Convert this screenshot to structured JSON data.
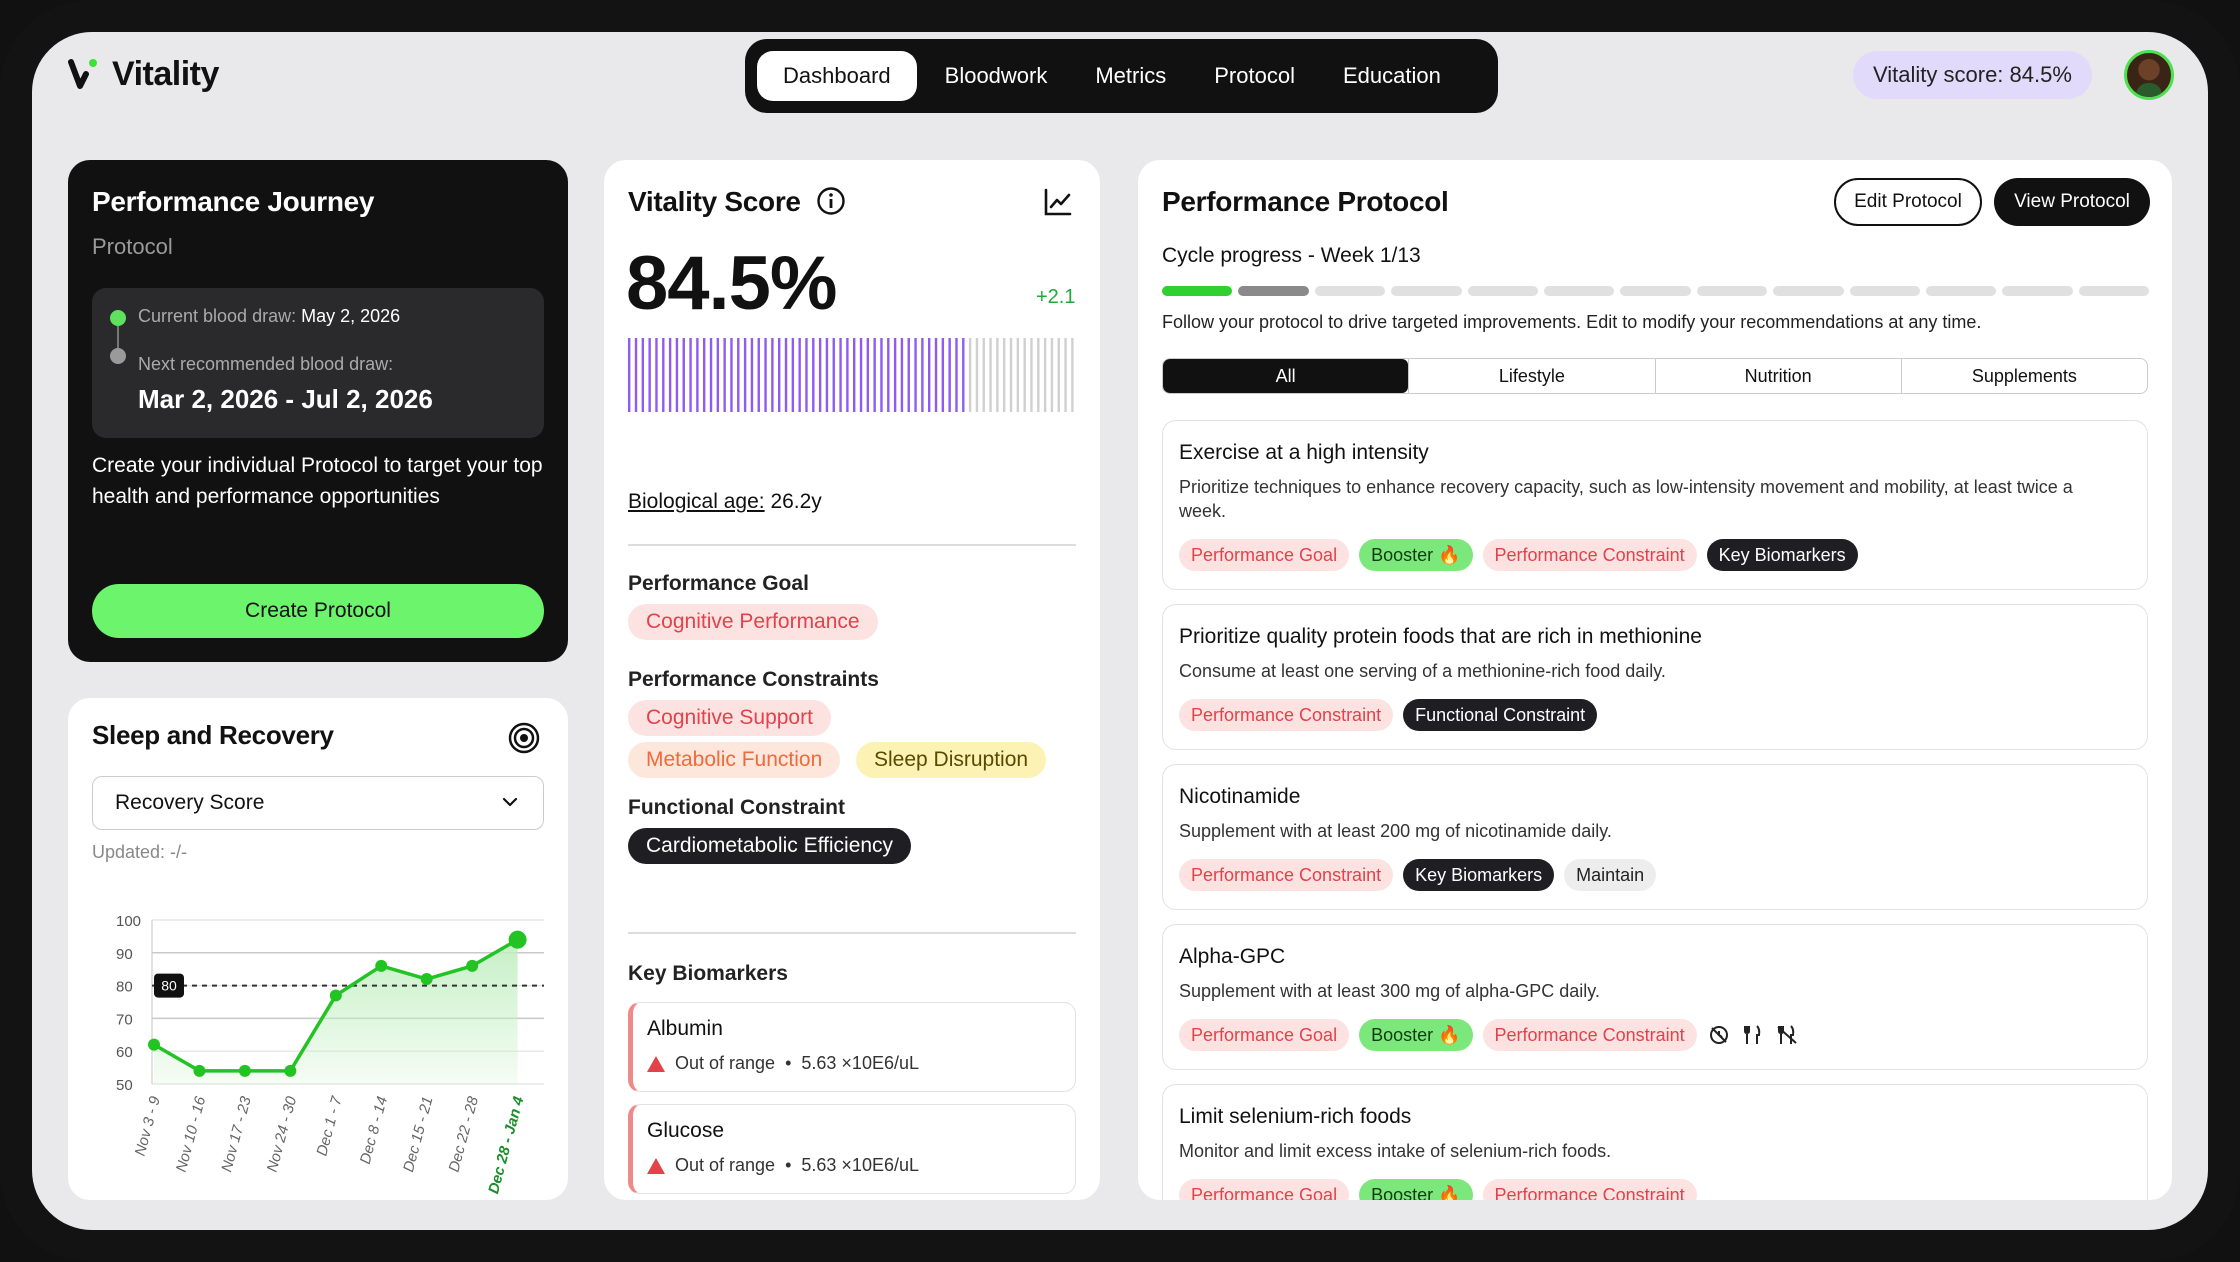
{
  "app": {
    "name": "Vitality"
  },
  "nav": {
    "items": [
      "Dashboard",
      "Bloodwork",
      "Metrics",
      "Protocol",
      "Education"
    ],
    "active": 0
  },
  "header": {
    "score_pill": "Vitality score: 84.5%"
  },
  "journey": {
    "title": "Performance Journey",
    "subtitle": "Protocol",
    "current_label": "Current blood draw:",
    "current_date": "May 2, 2026",
    "next_label": "Next recommended blood draw:",
    "next_range": "Mar 2, 2026 - Jul 2, 2026",
    "description": "Create your individual Protocol to target your top health and performance opportunities",
    "create_button": "Create Protocol"
  },
  "sleep": {
    "title": "Sleep and Recovery",
    "select_value": "Recovery Score",
    "updated": "Updated: -/-"
  },
  "chart_data": {
    "type": "line",
    "x": [
      "Nov 3 - 9",
      "Nov 10 - 16",
      "Nov 17 - 23",
      "Nov 24 - 30",
      "Dec 1 - 7",
      "Dec 8 - 14",
      "Dec 15 - 21",
      "Dec 22 - 28",
      "Dec 28 - Jan 4"
    ],
    "series": [
      {
        "values": [
          62,
          54,
          54,
          54,
          77,
          86,
          82,
          86,
          94
        ]
      }
    ],
    "ylim": [
      50,
      100
    ],
    "yticks": [
      100,
      90,
      80,
      70,
      60,
      50
    ],
    "reference_line": {
      "value": 80,
      "label": "80"
    },
    "highlight_last": true,
    "colors": {
      "line": "#22c322",
      "fill": "#bfeebf",
      "highlight_label": "#1a8f2a"
    }
  },
  "vitality": {
    "title": "Vitality Score",
    "score": "84.5%",
    "delta": "+2.1",
    "score_fraction": 0.76,
    "bio_label": "Biological age:",
    "bio_value": "26.2y",
    "goal_label": "Performance Goal",
    "goal_chip": "Cognitive Performance",
    "constraints_label": "Performance Constraints",
    "constraints": [
      "Cognitive Support",
      "Metabolic Function",
      "Sleep Disruption"
    ],
    "functional_label": "Functional Constraint",
    "functional_chip": "Cardiometabolic Efficiency",
    "biomarkers_label": "Key Biomarkers",
    "biomarkers": [
      {
        "name": "Albumin",
        "status": "Out of range",
        "value": "5.63 ×10E6/uL"
      },
      {
        "name": "Glucose",
        "status": "Out of range",
        "value": "5.63 ×10E6/uL"
      }
    ],
    "colors": {
      "bar_active": "#8e5cf0",
      "bar_inactive": "#d0d0d0"
    }
  },
  "protocol": {
    "title": "Performance Protocol",
    "edit_button": "Edit Protocol",
    "view_button": "View Protocol",
    "cycle_label": "Cycle progress - Week 1/13",
    "cycle_current": 1,
    "cycle_total": 13,
    "follow_text": "Follow your protocol to drive targeted improvements. Edit to modify your recommendations at any time.",
    "tabs": [
      "All",
      "Lifestyle",
      "Nutrition",
      "Supplements"
    ],
    "active_tab": 0,
    "recommendations": [
      {
        "title": "Exercise at a high intensity",
        "desc": "Prioritize techniques to enhance recovery capacity, such as low-intensity movement and mobility, at least twice a week.",
        "tags": [
          {
            "label": "Performance Goal",
            "style": "red"
          },
          {
            "label": "Booster 🔥",
            "style": "green"
          },
          {
            "label": "Performance Constraint",
            "style": "red"
          },
          {
            "label": "Key Biomarkers",
            "style": "dark"
          }
        ]
      },
      {
        "title": "Prioritize quality protein foods that are rich in methionine",
        "desc": "Consume at least one serving of a methionine-rich food daily.",
        "tags": [
          {
            "label": "Performance Constraint",
            "style": "red"
          },
          {
            "label": "Functional Constraint",
            "style": "dark"
          }
        ]
      },
      {
        "title": "Nicotinamide",
        "desc": "Supplement with at least 200 mg of nicotinamide daily.",
        "tags": [
          {
            "label": "Performance Constraint",
            "style": "red"
          },
          {
            "label": "Key Biomarkers",
            "style": "dark"
          },
          {
            "label": "Maintain",
            "style": "grey"
          }
        ]
      },
      {
        "title": "Alpha-GPC",
        "desc": "Supplement with at least 300 mg of alpha-GPC daily.",
        "tags": [
          {
            "label": "Performance Goal",
            "style": "red"
          },
          {
            "label": "Booster 🔥",
            "style": "green"
          },
          {
            "label": "Performance Constraint",
            "style": "red"
          }
        ],
        "icons": [
          "no-clock-icon",
          "fork-knife-icon",
          "no-fork-knife-icon"
        ]
      },
      {
        "title": "Limit selenium-rich foods",
        "desc": "Monitor and limit excess intake of selenium-rich foods.",
        "tags": [
          {
            "label": "Performance Goal",
            "style": "red"
          },
          {
            "label": "Booster 🔥",
            "style": "green"
          },
          {
            "label": "Performance Constraint",
            "style": "red"
          }
        ]
      }
    ]
  }
}
